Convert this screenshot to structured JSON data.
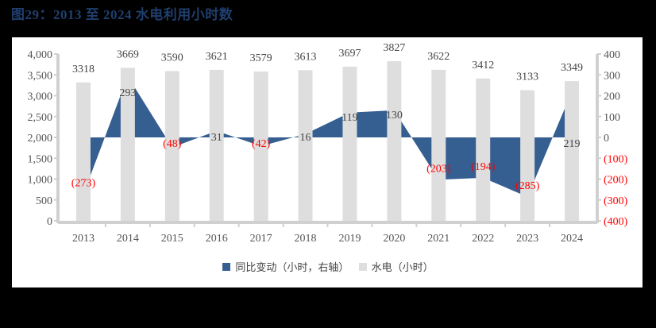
{
  "title": "图29：2013 至 2024 水电利用小时数",
  "legend": {
    "series1": "同比变动（小时，右轴）",
    "series2": "水电（小时）"
  },
  "colors": {
    "area": "#355e91",
    "bar": "#dedede",
    "axis": "#d0d0d0",
    "negative_label": "#ff0000",
    "label": "#444444",
    "title": "#1f3f6e"
  },
  "chart_data": {
    "type": "bar+area",
    "title": "图29：2013 至 2024 水电利用小时数",
    "categories": [
      "2013",
      "2014",
      "2015",
      "2016",
      "2017",
      "2018",
      "2019",
      "2020",
      "2021",
      "2022",
      "2023",
      "2024"
    ],
    "series": [
      {
        "name": "水电（小时）",
        "type": "bar",
        "axis": "left",
        "values": [
          3318,
          3669,
          3590,
          3621,
          3579,
          3613,
          3697,
          3827,
          3622,
          3412,
          3133,
          3349
        ]
      },
      {
        "name": "同比变动（小时，右轴）",
        "type": "area",
        "axis": "right",
        "values": [
          -273,
          293,
          -48,
          31,
          -42,
          16,
          119,
          130,
          -203,
          -194,
          -285,
          219
        ]
      }
    ],
    "left_axis": {
      "ylim": [
        0,
        4000
      ],
      "ticks": [
        "0",
        "500",
        "1,000",
        "1,500",
        "2,000",
        "2,500",
        "3,000",
        "3,500",
        "4,000"
      ]
    },
    "right_axis": {
      "ylim": [
        -400,
        400
      ],
      "ticks": [
        "(400)",
        "(300)",
        "(200)",
        "(100)",
        "0",
        "100",
        "200",
        "300",
        "400"
      ]
    },
    "grid": false,
    "legend_position": "bottom"
  }
}
